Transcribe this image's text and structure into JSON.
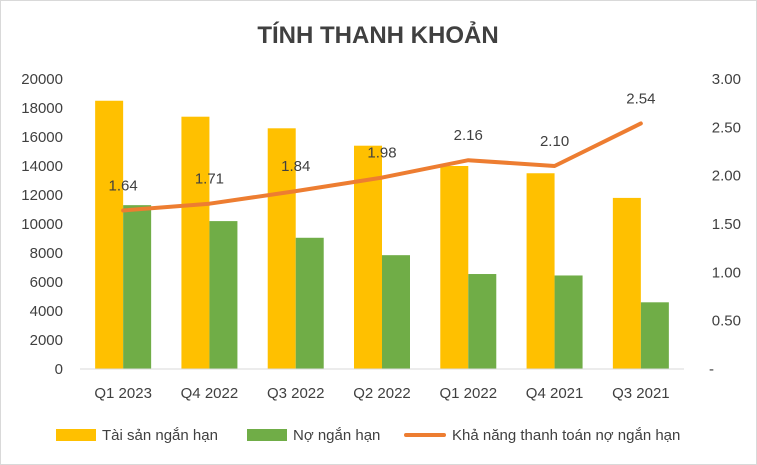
{
  "chart_data": {
    "type": "bar",
    "title": "TÍNH THANH KHOẢN",
    "categories": [
      "Q1 2023",
      "Q4 2022",
      "Q3 2022",
      "Q2 2022",
      "Q1 2022",
      "Q4 2021",
      "Q3 2021"
    ],
    "series": [
      {
        "name": "Tài sản ngắn hạn",
        "type": "bar",
        "axis": "left",
        "color": "#FFC000",
        "values": [
          18500,
          17400,
          16600,
          15400,
          14000,
          13500,
          11800
        ]
      },
      {
        "name": "Nợ ngắn hạn",
        "type": "bar",
        "axis": "left",
        "color": "#70AD47",
        "values": [
          11300,
          10200,
          9050,
          7850,
          6550,
          6450,
          4600
        ]
      },
      {
        "name": "Khả năng thanh toán nợ ngắn hạn",
        "type": "line",
        "axis": "right",
        "color": "#ED7D31",
        "values": [
          1.64,
          1.71,
          1.84,
          1.98,
          2.16,
          2.1,
          2.54
        ],
        "labels": [
          "1.64",
          "1.71",
          "1.84",
          "1.98",
          "2.16",
          "2.10",
          "2.54"
        ]
      }
    ],
    "y_left": {
      "ylim": [
        0,
        20000
      ],
      "ticks": [
        "0",
        "2000",
        "4000",
        "6000",
        "8000",
        "10000",
        "12000",
        "14000",
        "16000",
        "18000",
        "20000"
      ]
    },
    "y_right": {
      "ylim": [
        0,
        3
      ],
      "ticks": [
        "-",
        "0.50",
        "1.00",
        "1.50",
        "2.00",
        "2.50",
        "3.00"
      ]
    },
    "grid": false,
    "legend_position": "bottom"
  }
}
